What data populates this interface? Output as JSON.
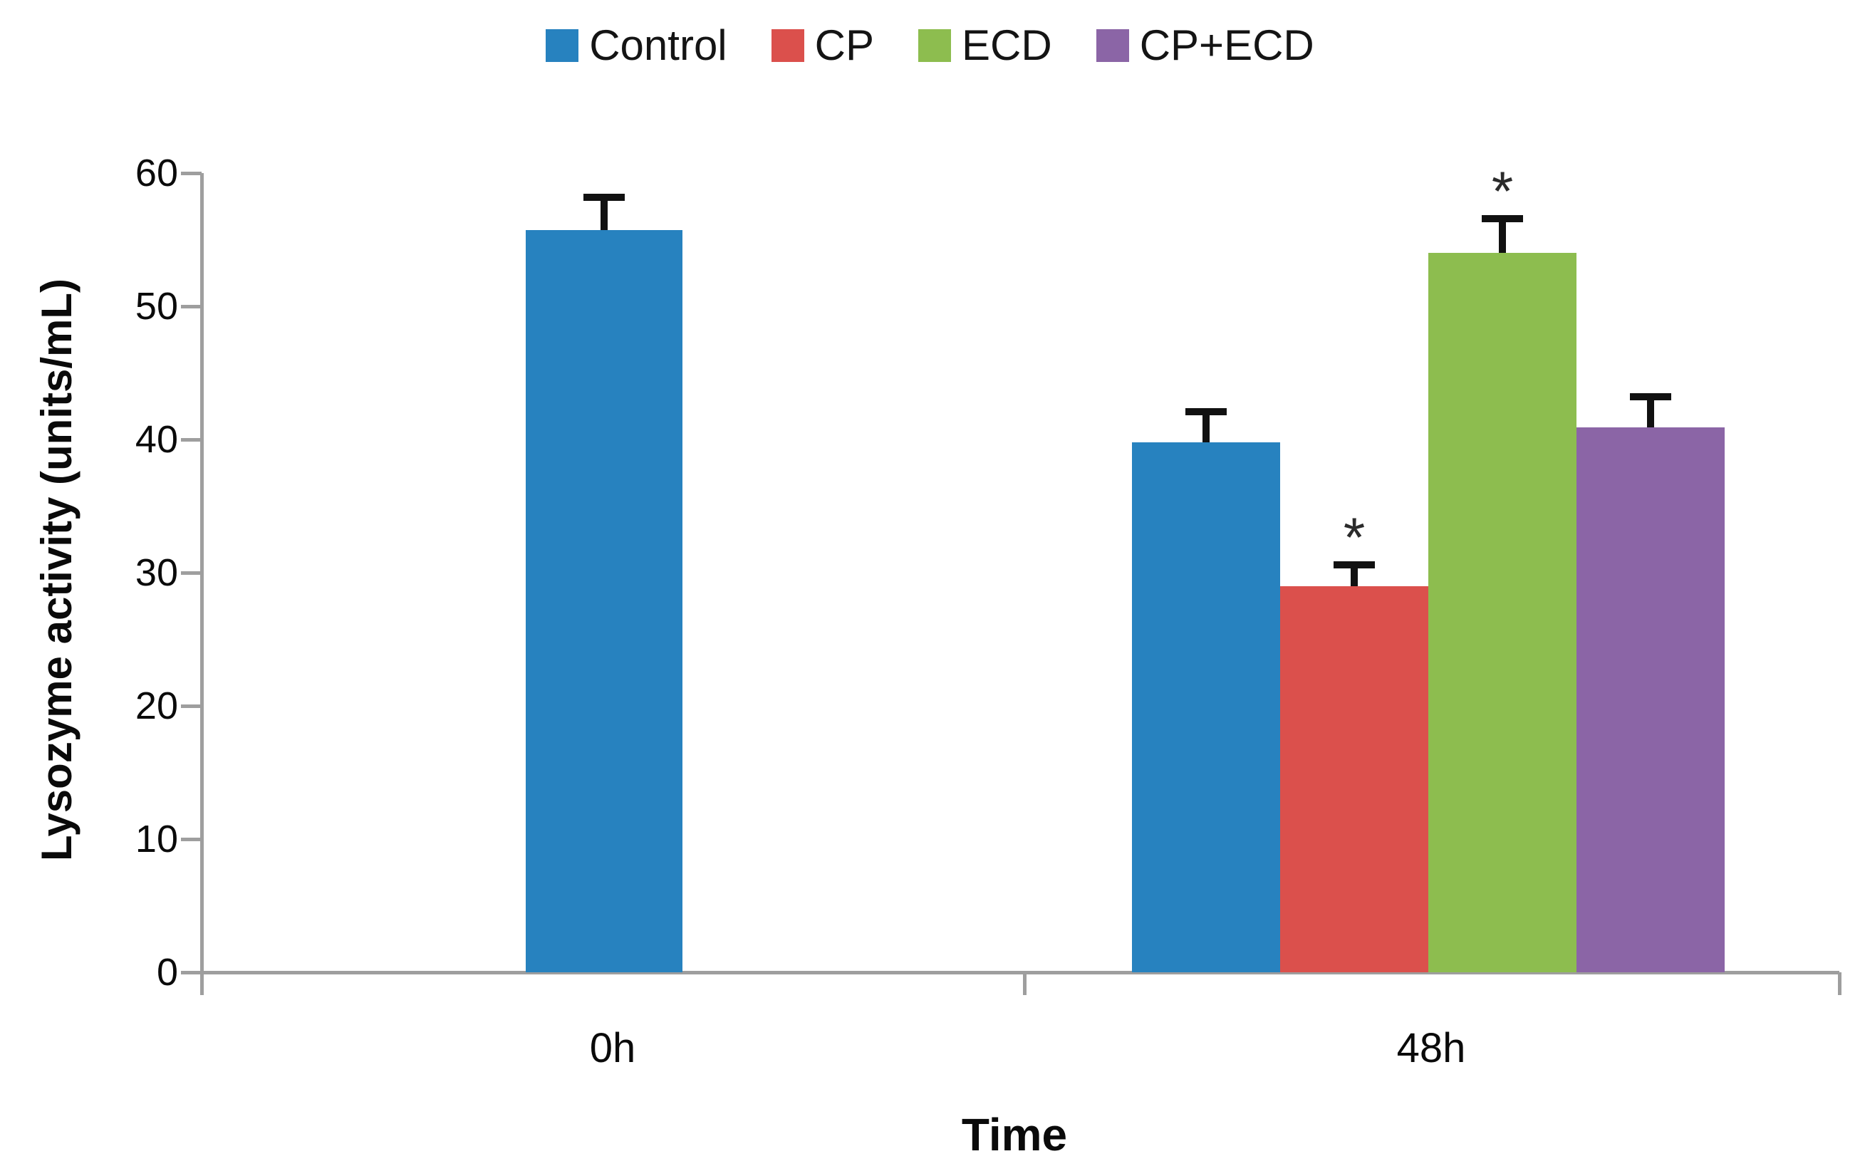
{
  "figure": {
    "background": "#ffffff"
  },
  "chart_data": {
    "type": "bar",
    "title": "",
    "categories": [
      "0h",
      "48h"
    ],
    "series": [
      {
        "name": "Control",
        "color": "#2782BF",
        "values": [
          55.7,
          39.8
        ],
        "errors": [
          2.5,
          2.3
        ],
        "significance": [
          null,
          null
        ]
      },
      {
        "name": "CP",
        "color": "#DB504C",
        "values": [
          null,
          29.0
        ],
        "errors": [
          null,
          1.6
        ],
        "significance": [
          null,
          "*"
        ]
      },
      {
        "name": "ECD",
        "color": "#8DBD4F",
        "values": [
          null,
          54.0
        ],
        "errors": [
          null,
          2.6
        ],
        "significance": [
          null,
          "*"
        ]
      },
      {
        "name": "CP+ECD",
        "color": "#8B65A6",
        "values": [
          null,
          40.9
        ],
        "errors": [
          null,
          2.3
        ],
        "significance": [
          null,
          null
        ]
      }
    ],
    "xlabel": "Time",
    "ylabel": "Lysozyme activity (units/mL)",
    "ylim": [
      0,
      60
    ],
    "yticks": [
      0,
      10,
      20,
      30,
      40,
      50,
      60
    ],
    "grid": false,
    "legend_position": "top",
    "error_bars": true,
    "axis_color": "#9E9E9E",
    "text_color": "#0A0A0A"
  }
}
